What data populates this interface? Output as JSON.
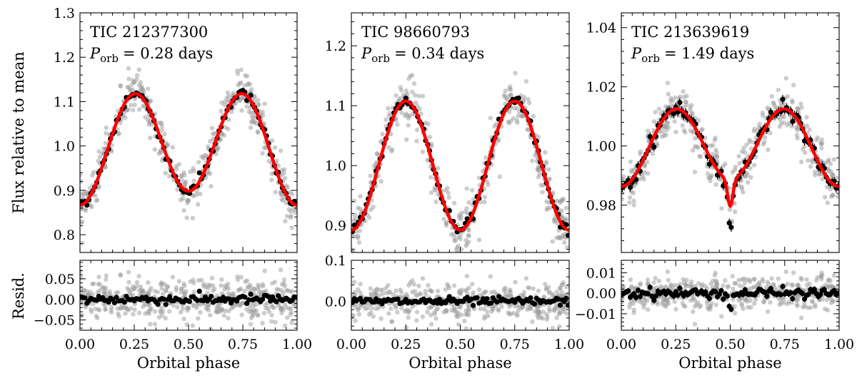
{
  "figure": {
    "ylabel_main": "Flux relative to mean",
    "ylabel_resid": "Resid.",
    "xlabel": "Orbital phase"
  },
  "chart_data": [
    {
      "type": "scatter",
      "id": "tic212377300",
      "title": "TIC 212377300",
      "period_text": "= 0.28 days",
      "xlabel": "Orbital phase",
      "ylabel": "Flux relative to mean",
      "resid_ylabel": "Resid.",
      "xlim": [
        0.0,
        1.0
      ],
      "ylim": [
        0.76,
        1.3
      ],
      "resid_ylim": [
        -0.075,
        0.095
      ],
      "xticks": [
        "0.00",
        "0.25",
        "0.50",
        "0.75",
        "1.00"
      ],
      "yticks": [
        "0.8",
        "0.9",
        "1.0",
        "1.1",
        "1.2",
        "1.3"
      ],
      "resid_yticks": [
        "0.05",
        "0.00",
        "−0.05"
      ],
      "model": {
        "mean": 1.0,
        "a1": 0.0,
        "a2": -0.1175,
        "b1": 0.0,
        "b2": 0.0,
        "c1": -0.0157,
        "dip_depth": 0.0,
        "dip_width": 0.02
      },
      "binned_errorbar": 0.004,
      "binned_scatter": 0.006,
      "raw_scatter": 0.025,
      "n_binned": 110,
      "n_raw": 450,
      "series": [
        {
          "name": "raw photometry",
          "color": "#9a9a9a"
        },
        {
          "name": "binned",
          "color": "#000000"
        },
        {
          "name": "model",
          "color": "#ff0000"
        }
      ]
    },
    {
      "type": "scatter",
      "id": "tic98660793",
      "title": "TIC 98660793",
      "period_text": "= 0.34 days",
      "xlabel": "Orbital phase",
      "ylabel": "",
      "resid_ylabel": "",
      "xlim": [
        0.0,
        1.0
      ],
      "ylim": [
        0.855,
        1.255
      ],
      "resid_ylim": [
        -0.07,
        0.1
      ],
      "xticks": [
        "0.00",
        "0.25",
        "0.50",
        "0.75",
        "1.00"
      ],
      "yticks": [
        "0.9",
        "1.0",
        "1.1",
        "1.2"
      ],
      "resid_yticks": [
        "0.1",
        "0.0"
      ],
      "model": {
        "mean": 1.0,
        "a1": 0.0,
        "a2": -0.1075,
        "b1": 0.0,
        "b2": 0.0,
        "c1": 0.0,
        "dip_depth": 0.0,
        "dip_width": 0.02
      },
      "binned_errorbar": 0.004,
      "binned_scatter": 0.005,
      "raw_scatter": 0.022,
      "n_binned": 110,
      "n_raw": 450,
      "series": [
        {
          "name": "raw photometry",
          "color": "#9a9a9a"
        },
        {
          "name": "binned",
          "color": "#000000"
        },
        {
          "name": "model",
          "color": "#ff0000"
        }
      ]
    },
    {
      "type": "scatter",
      "id": "tic213639619",
      "title": "TIC 213639619",
      "period_text": "= 1.49 days",
      "xlabel": "Orbital phase",
      "ylabel": "",
      "resid_ylabel": "",
      "xlim": [
        0.0,
        1.0
      ],
      "ylim": [
        0.964,
        1.045
      ],
      "resid_ylim": [
        -0.018,
        0.016
      ],
      "xticks": [
        "0.00",
        "0.25",
        "0.50",
        "0.75",
        "1.00"
      ],
      "yticks": [
        "0.98",
        "1.00",
        "1.02",
        "1.04"
      ],
      "resid_yticks": [
        "0.01",
        "0.00",
        "−0.01"
      ],
      "model": {
        "mean": 1.0,
        "a1": 0.0,
        "a2": -0.0125,
        "b1": 0.0,
        "b2": 0.0,
        "c1": -0.0012,
        "dip_depth": 0.009,
        "dip_width": 0.012
      },
      "binned_errorbar": 0.0015,
      "binned_scatter": 0.0012,
      "raw_scatter": 0.004,
      "n_binned": 110,
      "n_raw": 450,
      "series": [
        {
          "name": "raw photometry",
          "color": "#9a9a9a"
        },
        {
          "name": "binned",
          "color": "#000000"
        },
        {
          "name": "model",
          "color": "#ff0000"
        }
      ]
    }
  ]
}
